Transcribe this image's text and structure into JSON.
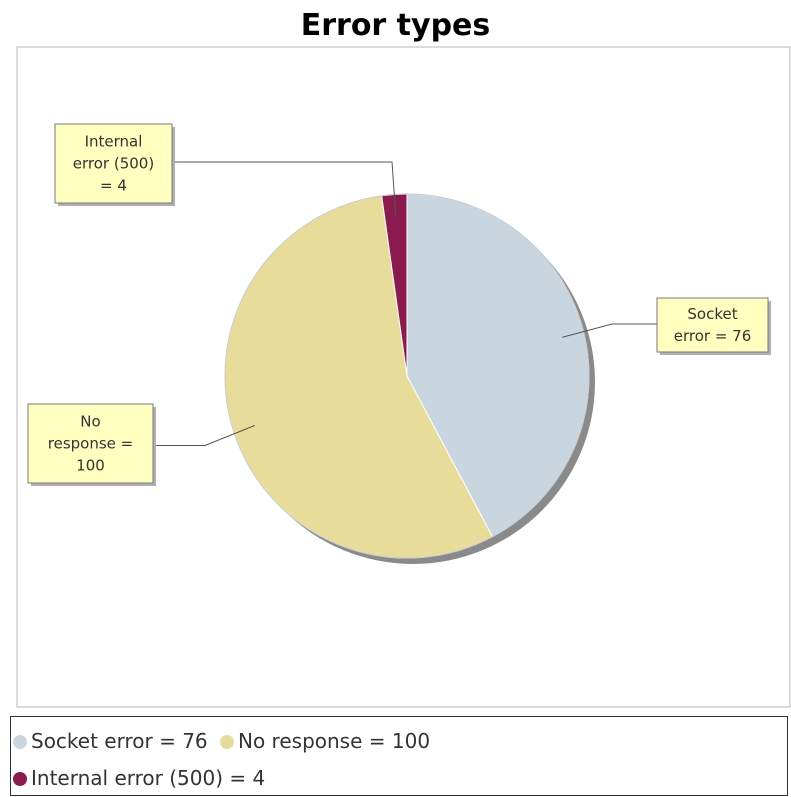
{
  "chart_data": {
    "type": "pie",
    "title": "Error types",
    "categories": [
      "Socket error",
      "No response",
      "Internal error (500)"
    ],
    "values": [
      76,
      100,
      4
    ],
    "slices": [
      {
        "label": "Socket error",
        "value": 76,
        "color": "#c9d5df",
        "callout": [
          "Socket",
          "error = 76"
        ],
        "legend": "Socket error = 76"
      },
      {
        "label": "No response",
        "value": 100,
        "color": "#e8dc9a",
        "callout": [
          "No",
          "response =",
          "100"
        ],
        "legend": "No response = 100"
      },
      {
        "label": "Internal error (500)",
        "value": 4,
        "color": "#8b1a4f",
        "callout": [
          "Internal",
          "error (500)",
          "= 4"
        ],
        "legend": "Internal error (500) = 4"
      }
    ],
    "start_angle": "12 o'clock",
    "direction": "clockwise",
    "legend_position": "bottom",
    "label_box_color": "#ffffc0"
  }
}
